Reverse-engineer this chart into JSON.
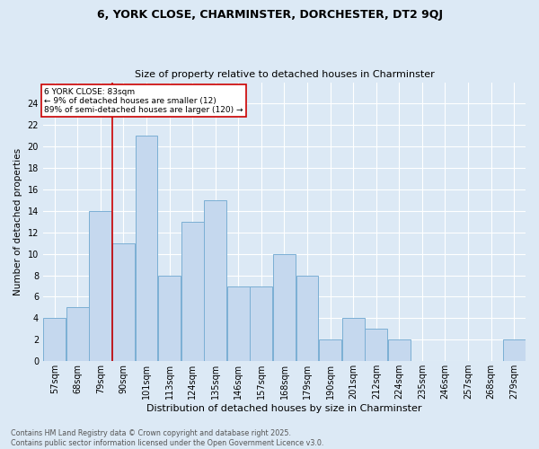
{
  "title1": "6, YORK CLOSE, CHARMINSTER, DORCHESTER, DT2 9QJ",
  "title2": "Size of property relative to detached houses in Charminster",
  "xlabel": "Distribution of detached houses by size in Charminster",
  "ylabel": "Number of detached properties",
  "footer": "Contains HM Land Registry data © Crown copyright and database right 2025.\nContains public sector information licensed under the Open Government Licence v3.0.",
  "bar_labels": [
    "57sqm",
    "68sqm",
    "79sqm",
    "90sqm",
    "101sqm",
    "113sqm",
    "124sqm",
    "135sqm",
    "146sqm",
    "157sqm",
    "168sqm",
    "179sqm",
    "190sqm",
    "201sqm",
    "212sqm",
    "224sqm",
    "235sqm",
    "246sqm",
    "257sqm",
    "268sqm",
    "279sqm"
  ],
  "bar_values": [
    4,
    5,
    14,
    11,
    21,
    8,
    13,
    15,
    7,
    7,
    10,
    8,
    2,
    4,
    3,
    2,
    0,
    0,
    0,
    0,
    2
  ],
  "bar_color": "#c5d8ee",
  "bar_edge_color": "#7bafd4",
  "highlight_label": "6 YORK CLOSE: 83sqm",
  "annotation_line1": "← 9% of detached houses are smaller (12)",
  "annotation_line2": "89% of semi-detached houses are larger (120) →",
  "vline_color": "#cc0000",
  "annotation_box_color": "#ffffff",
  "annotation_box_edge": "#cc0000",
  "ylim": [
    0,
    26
  ],
  "ytick_max": 24,
  "background_color": "#dce9f5",
  "grid_color": "#ffffff",
  "title1_fontsize": 9,
  "title2_fontsize": 8,
  "xlabel_fontsize": 8,
  "ylabel_fontsize": 7.5,
  "tick_fontsize": 7,
  "footer_fontsize": 5.8
}
